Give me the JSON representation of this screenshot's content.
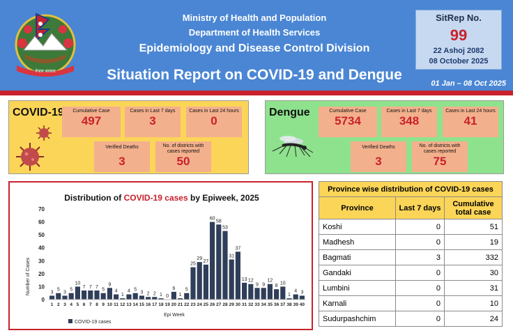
{
  "header": {
    "line1": "Ministry of Health and Population",
    "line2": "Department of Health Services",
    "line3": "Epidemiology and Disease Control Division",
    "title": "Situation Report on COVID-19 and Dengue",
    "date_range": "01 Jan – 08 Oct 2025",
    "emblem_text": "नेपाल सरकार"
  },
  "sitrep": {
    "label": "SitRep No.",
    "number": "99",
    "date_np": "22 Ashoj 2082",
    "date_en": "08 October 2025"
  },
  "covid": {
    "title": "COVID-19",
    "stats": [
      {
        "label": "Cumulative Case",
        "value": "497"
      },
      {
        "label": "Cases in Last 7 days",
        "value": "3"
      },
      {
        "label": "Cases in Last 24 hours",
        "value": "0"
      },
      {
        "label": "Verified Deaths",
        "value": "3"
      },
      {
        "label": "No. of districts with cases reported",
        "value": "50"
      }
    ]
  },
  "dengue": {
    "title": "Dengue",
    "stats": [
      {
        "label": "Cumulative Case",
        "value": "5734"
      },
      {
        "label": "Cases in Last 7 days",
        "value": "348"
      },
      {
        "label": "Cases in Last 24 hours",
        "value": "41"
      },
      {
        "label": "Verified Deaths",
        "value": "3"
      },
      {
        "label": "No. of districts with cases reported",
        "value": "75"
      }
    ]
  },
  "chart_data": {
    "type": "bar",
    "title_prefix": "Distribution of ",
    "title_highlight": "COVID-19 cases",
    "title_suffix": " by Epiweek, 2025",
    "xlabel": "Epi Week",
    "ylabel": "Number of Cases",
    "ylim": [
      0,
      70
    ],
    "yticks": [
      0,
      10,
      20,
      30,
      40,
      50,
      60,
      70
    ],
    "categories": [
      "1",
      "2",
      "3",
      "4",
      "5",
      "6",
      "7",
      "8",
      "9",
      "10",
      "11",
      "12",
      "13",
      "14",
      "15",
      "16",
      "17",
      "18",
      "19",
      "20",
      "21",
      "22",
      "23",
      "24",
      "25",
      "26",
      "27",
      "28",
      "29",
      "30",
      "31",
      "32",
      "33",
      "34",
      "35",
      "36",
      "37",
      "38",
      "39",
      "40"
    ],
    "series": [
      {
        "name": "COVID-19 cases",
        "values": [
          3,
          5,
          3,
          5,
          10,
          7,
          7,
          7,
          5,
          9,
          4,
          1,
          4,
          5,
          3,
          2,
          2,
          1,
          0,
          6,
          1,
          5,
          25,
          29,
          27,
          60,
          58,
          53,
          31,
          37,
          13,
          12,
          9,
          9,
          12,
          8,
          10,
          1,
          4,
          3
        ]
      }
    ],
    "color": "#2f3e59",
    "legend": "bottom-left"
  },
  "province_table": {
    "title": "Province wise distribution of COVID-19 cases",
    "headers": [
      "Province",
      "Last 7 days",
      "Cumulative total case"
    ],
    "rows": [
      {
        "province": "Koshi",
        "last7": "0",
        "total": "51"
      },
      {
        "province": "Madhesh",
        "last7": "0",
        "total": "19"
      },
      {
        "province": "Bagmati",
        "last7": "3",
        "total": "332"
      },
      {
        "province": "Gandaki",
        "last7": "0",
        "total": "30"
      },
      {
        "province": "Lumbini",
        "last7": "0",
        "total": "31"
      },
      {
        "province": "Karnali",
        "last7": "0",
        "total": "10"
      },
      {
        "province": "Sudurpashchim",
        "last7": "0",
        "total": "24"
      }
    ]
  },
  "colors": {
    "header_blue": "#4a86d4",
    "accent_red": "#c8212b",
    "covid_panel": "#fbd558",
    "dengue_panel": "#8fe28d",
    "stat_box": "#f3b08d",
    "bar": "#2f3e59"
  }
}
